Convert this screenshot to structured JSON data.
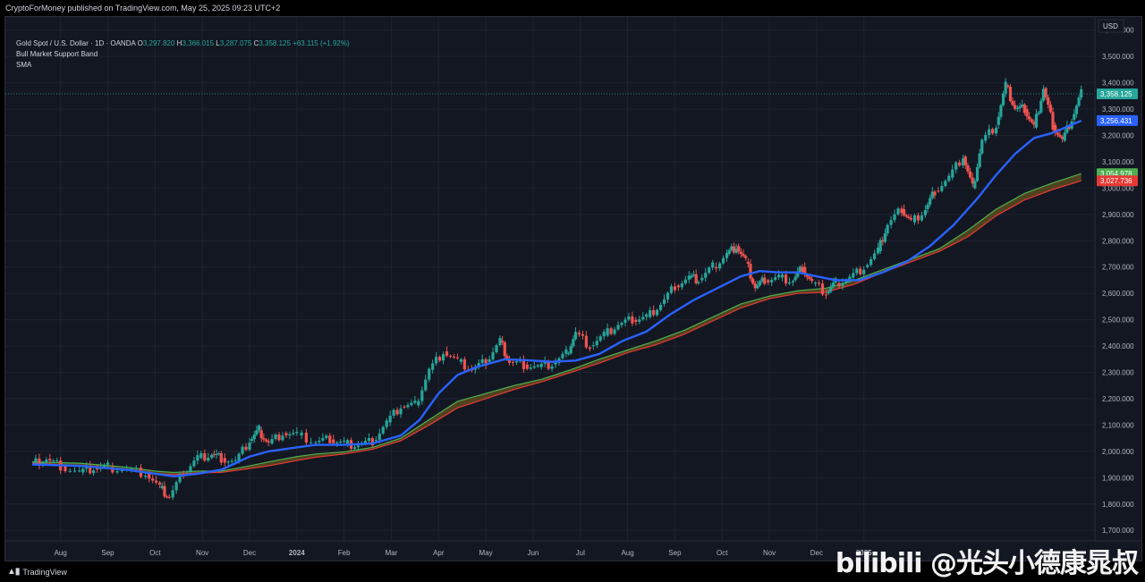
{
  "header": {
    "publish_line": "CryptoForMoney published on TradingView.com, May 25, 2025 09:23 UTC+2"
  },
  "legend": {
    "symbol": "Gold Spot / U.S. Dollar · 1D · OANDA",
    "o_label": "O",
    "o_value": "3,297.820",
    "h_label": "H",
    "h_value": "3,366.015",
    "l_label": "L",
    "l_value": "3,287.075",
    "c_label": "C",
    "c_value": "3,358.125",
    "change": "+63.115 (+1.92%)",
    "indicator_1": "Bull Market Support Band",
    "indicator_2": "SMA"
  },
  "footer": {
    "brand": "TradingView"
  },
  "watermark": {
    "text": "bilibili @光头小德康晁叔"
  },
  "colors": {
    "background": "#131722",
    "grid": "#1f2330",
    "up": "#26a69a",
    "down": "#ef5350",
    "sma": "#2962ff",
    "band_upper": "#4caf50",
    "band_lower": "#e53935",
    "band_fill": "#5d4a1f"
  },
  "chart_data": {
    "type": "line",
    "title": "Gold Spot / U.S. Dollar · 1D · OANDA",
    "currency_label": "USD",
    "y_axis": {
      "ticks": [
        1700,
        1800,
        1900,
        2000,
        2100,
        2200,
        2300,
        2400,
        2500,
        2600,
        2700,
        2800,
        2900,
        3000,
        3100,
        3200,
        3300,
        3400,
        3500,
        3600
      ],
      "tick_labels": [
        "1,700.000",
        "1,800.000",
        "1,900.000",
        "2,000.000",
        "2,100.000",
        "2,200.000",
        "2,300.000",
        "2,400.000",
        "2,500.000",
        "2,600.000",
        "2,700.000",
        "2,800.000",
        "2,900.000",
        "3,000.000",
        "3,100.000",
        "3,200.000",
        "3,300.000",
        "3,400.000",
        "3,500.000",
        "3,600.000"
      ],
      "ylim": [
        1660,
        3650
      ]
    },
    "x_axis": {
      "labels": [
        "Aug",
        "Sep",
        "Oct",
        "Nov",
        "Dec",
        "2024",
        "Feb",
        "Mar",
        "Apr",
        "May",
        "Jun",
        "Jul",
        "Aug",
        "Sep",
        "Oct",
        "Nov",
        "Dec",
        "2025"
      ],
      "bold_labels": [
        "2024",
        "2025"
      ],
      "index_range": [
        0,
        22.3
      ]
    },
    "grid": true,
    "price_labels": [
      {
        "value": 3358.125,
        "text": "3,358.125",
        "color": "#26a69a"
      },
      {
        "value": 3256.431,
        "text": "3,256.431",
        "color": "#2962ff"
      },
      {
        "value": 3054.978,
        "text": "3,054.978",
        "color": "#4caf50"
      },
      {
        "value": 3027.736,
        "text": "3,027.736",
        "color": "#e53935"
      }
    ],
    "last_close": 3358.125,
    "price_path": [
      [
        0.0,
        1955
      ],
      [
        0.3,
        1972
      ],
      [
        0.6,
        1945
      ],
      [
        1.0,
        1920
      ],
      [
        1.3,
        1935
      ],
      [
        1.6,
        1940
      ],
      [
        2.0,
        1930
      ],
      [
        2.4,
        1918
      ],
      [
        2.7,
        1860
      ],
      [
        2.9,
        1825
      ],
      [
        3.2,
        1920
      ],
      [
        3.5,
        1975
      ],
      [
        3.8,
        1990
      ],
      [
        4.0,
        1975
      ],
      [
        4.3,
        1960
      ],
      [
        4.6,
        2040
      ],
      [
        4.8,
        2080
      ],
      [
        5.0,
        2030
      ],
      [
        5.3,
        2070
      ],
      [
        5.6,
        2060
      ],
      [
        6.0,
        2035
      ],
      [
        6.3,
        2045
      ],
      [
        6.6,
        2030
      ],
      [
        6.9,
        2025
      ],
      [
        7.2,
        2040
      ],
      [
        7.5,
        2110
      ],
      [
        7.8,
        2170
      ],
      [
        8.1,
        2175
      ],
      [
        8.4,
        2310
      ],
      [
        8.7,
        2380
      ],
      [
        9.0,
        2340
      ],
      [
        9.3,
        2310
      ],
      [
        9.6,
        2340
      ],
      [
        9.9,
        2420
      ],
      [
        10.1,
        2340
      ],
      [
        10.4,
        2330
      ],
      [
        10.7,
        2320
      ],
      [
        11.0,
        2330
      ],
      [
        11.3,
        2370
      ],
      [
        11.5,
        2450
      ],
      [
        11.8,
        2400
      ],
      [
        12.1,
        2440
      ],
      [
        12.4,
        2480
      ],
      [
        12.7,
        2500
      ],
      [
        13.0,
        2510
      ],
      [
        13.3,
        2560
      ],
      [
        13.6,
        2630
      ],
      [
        13.9,
        2660
      ],
      [
        14.1,
        2650
      ],
      [
        14.4,
        2700
      ],
      [
        14.7,
        2750
      ],
      [
        14.9,
        2780
      ],
      [
        15.1,
        2720
      ],
      [
        15.3,
        2620
      ],
      [
        15.5,
        2650
      ],
      [
        15.8,
        2660
      ],
      [
        16.1,
        2650
      ],
      [
        16.3,
        2700
      ],
      [
        16.5,
        2640
      ],
      [
        16.8,
        2600
      ],
      [
        17.0,
        2640
      ],
      [
        17.3,
        2660
      ],
      [
        17.6,
        2700
      ],
      [
        17.9,
        2760
      ],
      [
        18.1,
        2860
      ],
      [
        18.4,
        2920
      ],
      [
        18.6,
        2870
      ],
      [
        18.9,
        2920
      ],
      [
        19.1,
        2990
      ],
      [
        19.4,
        3040
      ],
      [
        19.7,
        3120
      ],
      [
        19.9,
        3000
      ],
      [
        20.1,
        3180
      ],
      [
        20.4,
        3240
      ],
      [
        20.6,
        3390
      ],
      [
        20.8,
        3300
      ],
      [
        21.0,
        3300
      ],
      [
        21.2,
        3230
      ],
      [
        21.4,
        3380
      ],
      [
        21.6,
        3240
      ],
      [
        21.8,
        3180
      ],
      [
        22.0,
        3260
      ],
      [
        22.2,
        3358
      ]
    ],
    "sma_path": [
      [
        0.0,
        1950
      ],
      [
        1.0,
        1945
      ],
      [
        2.0,
        1930
      ],
      [
        2.6,
        1915
      ],
      [
        3.0,
        1905
      ],
      [
        3.5,
        1915
      ],
      [
        4.0,
        1930
      ],
      [
        4.6,
        1980
      ],
      [
        5.0,
        2000
      ],
      [
        5.6,
        2015
      ],
      [
        6.0,
        2025
      ],
      [
        6.6,
        2025
      ],
      [
        7.2,
        2030
      ],
      [
        7.8,
        2060
      ],
      [
        8.2,
        2120
      ],
      [
        8.6,
        2220
      ],
      [
        9.0,
        2290
      ],
      [
        9.4,
        2320
      ],
      [
        10.0,
        2350
      ],
      [
        10.6,
        2345
      ],
      [
        11.0,
        2340
      ],
      [
        11.5,
        2345
      ],
      [
        12.0,
        2370
      ],
      [
        12.5,
        2420
      ],
      [
        13.0,
        2455
      ],
      [
        13.5,
        2520
      ],
      [
        14.0,
        2575
      ],
      [
        14.5,
        2620
      ],
      [
        15.0,
        2665
      ],
      [
        15.4,
        2685
      ],
      [
        15.8,
        2680
      ],
      [
        16.2,
        2680
      ],
      [
        16.6,
        2665
      ],
      [
        17.0,
        2650
      ],
      [
        17.5,
        2650
      ],
      [
        18.0,
        2680
      ],
      [
        18.5,
        2720
      ],
      [
        19.0,
        2780
      ],
      [
        19.5,
        2860
      ],
      [
        20.0,
        2960
      ],
      [
        20.4,
        3050
      ],
      [
        20.8,
        3130
      ],
      [
        21.2,
        3190
      ],
      [
        21.6,
        3210
      ],
      [
        22.2,
        3256
      ]
    ],
    "band_upper_path": [
      [
        0.0,
        1960
      ],
      [
        1.0,
        1955
      ],
      [
        2.0,
        1940
      ],
      [
        2.6,
        1925
      ],
      [
        3.0,
        1920
      ],
      [
        3.5,
        1925
      ],
      [
        4.0,
        1925
      ],
      [
        4.6,
        1945
      ],
      [
        5.0,
        1960
      ],
      [
        5.6,
        1980
      ],
      [
        6.0,
        1990
      ],
      [
        6.6,
        1998
      ],
      [
        7.2,
        2015
      ],
      [
        7.8,
        2050
      ],
      [
        8.4,
        2120
      ],
      [
        9.0,
        2190
      ],
      [
        9.6,
        2220
      ],
      [
        10.2,
        2250
      ],
      [
        10.8,
        2275
      ],
      [
        11.4,
        2310
      ],
      [
        12.0,
        2350
      ],
      [
        12.6,
        2385
      ],
      [
        13.2,
        2420
      ],
      [
        13.8,
        2460
      ],
      [
        14.4,
        2510
      ],
      [
        15.0,
        2560
      ],
      [
        15.6,
        2590
      ],
      [
        16.2,
        2610
      ],
      [
        16.8,
        2620
      ],
      [
        17.4,
        2650
      ],
      [
        18.0,
        2690
      ],
      [
        18.6,
        2730
      ],
      [
        19.2,
        2770
      ],
      [
        19.8,
        2840
      ],
      [
        20.4,
        2920
      ],
      [
        21.0,
        2980
      ],
      [
        21.6,
        3020
      ],
      [
        22.2,
        3055
      ]
    ],
    "band_lower_path": [
      [
        0.0,
        1955
      ],
      [
        1.0,
        1945
      ],
      [
        2.0,
        1930
      ],
      [
        2.6,
        1915
      ],
      [
        3.0,
        1912
      ],
      [
        3.5,
        1918
      ],
      [
        4.0,
        1920
      ],
      [
        4.6,
        1935
      ],
      [
        5.0,
        1945
      ],
      [
        5.6,
        1965
      ],
      [
        6.0,
        1978
      ],
      [
        6.6,
        1990
      ],
      [
        7.2,
        2008
      ],
      [
        7.8,
        2040
      ],
      [
        8.4,
        2100
      ],
      [
        9.0,
        2165
      ],
      [
        9.6,
        2200
      ],
      [
        10.2,
        2235
      ],
      [
        10.8,
        2265
      ],
      [
        11.4,
        2300
      ],
      [
        12.0,
        2335
      ],
      [
        12.6,
        2375
      ],
      [
        13.2,
        2405
      ],
      [
        13.8,
        2445
      ],
      [
        14.4,
        2495
      ],
      [
        15.0,
        2545
      ],
      [
        15.6,
        2580
      ],
      [
        16.2,
        2600
      ],
      [
        16.8,
        2605
      ],
      [
        17.4,
        2635
      ],
      [
        18.0,
        2680
      ],
      [
        18.6,
        2720
      ],
      [
        19.2,
        2760
      ],
      [
        19.8,
        2815
      ],
      [
        20.4,
        2895
      ],
      [
        21.0,
        2955
      ],
      [
        21.6,
        2995
      ],
      [
        22.2,
        3028
      ]
    ]
  }
}
